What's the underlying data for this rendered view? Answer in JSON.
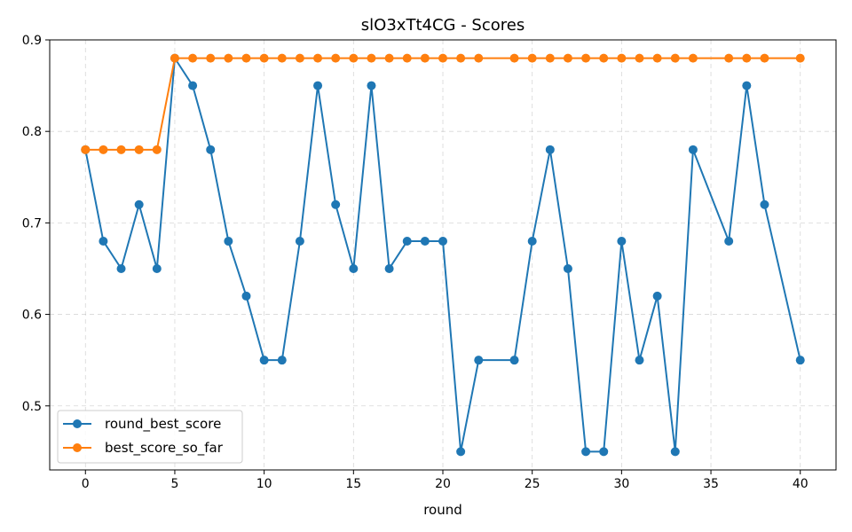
{
  "chart_data": {
    "type": "line",
    "title": "slO3xTt4CG - Scores",
    "xlabel": "round",
    "ylabel": "",
    "xlim": [
      -2,
      42
    ],
    "ylim": [
      0.43,
      0.9
    ],
    "xticks": [
      0,
      5,
      10,
      15,
      20,
      25,
      30,
      35,
      40
    ],
    "yticks": [
      0.5,
      0.6,
      0.7,
      0.8,
      0.9
    ],
    "grid": true,
    "legend_position": "lower-left",
    "series": [
      {
        "name": "round_best_score",
        "color": "#1f77b4",
        "x": [
          0,
          1,
          2,
          3,
          4,
          5,
          6,
          7,
          8,
          9,
          10,
          11,
          12,
          13,
          14,
          15,
          16,
          17,
          18,
          19,
          20,
          21,
          22,
          24,
          25,
          26,
          27,
          28,
          29,
          30,
          31,
          32,
          33,
          34,
          36,
          37,
          38,
          40
        ],
        "values": [
          0.78,
          0.68,
          0.65,
          0.72,
          0.65,
          0.88,
          0.85,
          0.78,
          0.68,
          0.62,
          0.55,
          0.55,
          0.68,
          0.85,
          0.72,
          0.65,
          0.85,
          0.65,
          0.68,
          0.68,
          0.68,
          0.45,
          0.55,
          0.55,
          0.68,
          0.78,
          0.65,
          0.45,
          0.45,
          0.68,
          0.55,
          0.62,
          0.45,
          0.78,
          0.68,
          0.85,
          0.72,
          0.55
        ]
      },
      {
        "name": "best_score_so_far",
        "color": "#ff7f0e",
        "x": [
          0,
          1,
          2,
          3,
          4,
          5,
          6,
          7,
          8,
          9,
          10,
          11,
          12,
          13,
          14,
          15,
          16,
          17,
          18,
          19,
          20,
          21,
          22,
          24,
          25,
          26,
          27,
          28,
          29,
          30,
          31,
          32,
          33,
          34,
          36,
          37,
          38,
          40
        ],
        "values": [
          0.78,
          0.78,
          0.78,
          0.78,
          0.78,
          0.88,
          0.88,
          0.88,
          0.88,
          0.88,
          0.88,
          0.88,
          0.88,
          0.88,
          0.88,
          0.88,
          0.88,
          0.88,
          0.88,
          0.88,
          0.88,
          0.88,
          0.88,
          0.88,
          0.88,
          0.88,
          0.88,
          0.88,
          0.88,
          0.88,
          0.88,
          0.88,
          0.88,
          0.88,
          0.88,
          0.88,
          0.88,
          0.88
        ]
      }
    ]
  }
}
